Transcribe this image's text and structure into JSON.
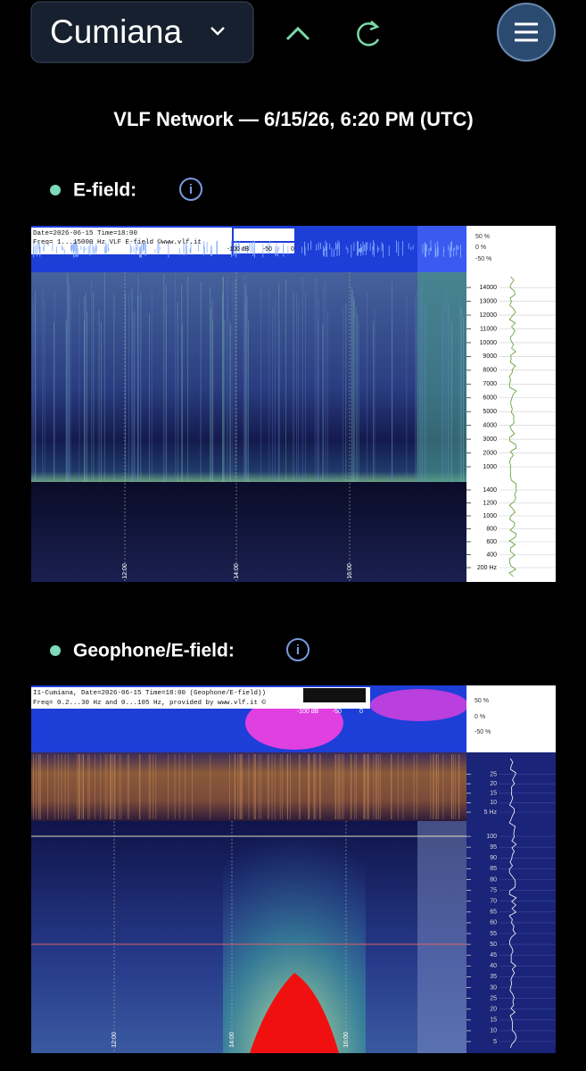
{
  "header": {
    "location": "Cumiana"
  },
  "subtitle": "VLF Network — 6/15/26, 6:20 PM (UTC)",
  "sections": [
    {
      "label": "E-field:",
      "image": {
        "lines": [
          "Date=2026-06-15 Time=18:00",
          "Freq= 1...15000 Hz   VLF E-field ©www.vlf.it"
        ],
        "colorbar": [
          "-100 dB",
          "-50",
          "0"
        ],
        "amplitude": [
          "50 %",
          "0 %",
          "-50 %"
        ],
        "upper_ticks": [
          "1000",
          "2000",
          "3000",
          "4000",
          "5000",
          "6000",
          "7000",
          "8000",
          "9000",
          "10000",
          "11000",
          "12000",
          "13000",
          "14000"
        ],
        "lower_ticks": [
          "200 Hz",
          "400",
          "600",
          "800",
          "1000",
          "1200",
          "1400"
        ],
        "times": [
          "12:00",
          "14:00",
          "16:00"
        ]
      }
    },
    {
      "label": "Geophone/E-field:",
      "image": {
        "lines": [
          "I1-Cumiana, Date=2026-06-15 Time=18:00 (Geophone/E-field))",
          "Freq= 0.2...30 Hz and 0...105 Hz, provided by www.vlf.it ©"
        ],
        "colorbar": [
          "-100 dB",
          "-50",
          "0"
        ],
        "amplitude": [
          "50 %",
          "0 %",
          "-50 %"
        ],
        "upper_ticks": [
          "5 Hz",
          "10",
          "15",
          "20",
          "25"
        ],
        "lower_ticks": [
          "5",
          "10",
          "15",
          "20",
          "25",
          "30",
          "35",
          "40",
          "45",
          "50",
          "55",
          "60",
          "65",
          "70",
          "75",
          "80",
          "85",
          "90",
          "95",
          "100"
        ],
        "times": [
          "12:00",
          "14:00",
          "16:00"
        ]
      }
    }
  ]
}
